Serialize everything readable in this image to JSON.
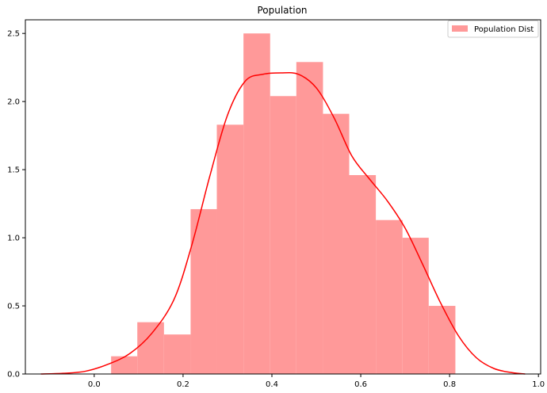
{
  "chart_data": {
    "type": "bar",
    "title": "Population",
    "xlabel": "",
    "ylabel": "",
    "xlim": [
      -0.155,
      1.005
    ],
    "ylim": [
      0,
      2.6
    ],
    "xticks": [
      0.0,
      0.2,
      0.4,
      0.6,
      0.8,
      1.0
    ],
    "xtick_labels": [
      "0.0",
      "0.2",
      "0.4",
      "0.6",
      "0.8",
      "1.0"
    ],
    "yticks": [
      0.0,
      0.5,
      1.0,
      1.5,
      2.0,
      2.5
    ],
    "ytick_labels": [
      "0.0",
      "0.5",
      "1.0",
      "1.5",
      "2.0",
      "2.5"
    ],
    "grid": false,
    "legend": {
      "placement": "top-right",
      "entries": [
        "Population Dist"
      ]
    },
    "histogram": {
      "name": "Population Dist",
      "color": "#ff9999",
      "bin_edges": [
        0.038,
        0.097,
        0.157,
        0.217,
        0.276,
        0.336,
        0.396,
        0.455,
        0.515,
        0.574,
        0.634,
        0.694,
        0.753,
        0.813
      ],
      "values": [
        0.13,
        0.38,
        0.29,
        1.21,
        1.83,
        2.5,
        2.04,
        2.29,
        1.91,
        1.46,
        1.13,
        1.0,
        0.5
      ]
    },
    "kde": {
      "color": "#ff0000",
      "x": [
        -0.12,
        -0.07,
        -0.02,
        0.03,
        0.08,
        0.13,
        0.18,
        0.22,
        0.26,
        0.3,
        0.34,
        0.38,
        0.42,
        0.46,
        0.5,
        0.54,
        0.58,
        0.62,
        0.66,
        0.7,
        0.74,
        0.78,
        0.82,
        0.86,
        0.9,
        0.94,
        0.97
      ],
      "y": [
        0.0,
        0.005,
        0.02,
        0.07,
        0.15,
        0.3,
        0.55,
        0.95,
        1.45,
        1.9,
        2.15,
        2.2,
        2.21,
        2.2,
        2.1,
        1.88,
        1.6,
        1.43,
        1.27,
        1.07,
        0.8,
        0.52,
        0.28,
        0.12,
        0.04,
        0.01,
        0.0
      ]
    }
  }
}
